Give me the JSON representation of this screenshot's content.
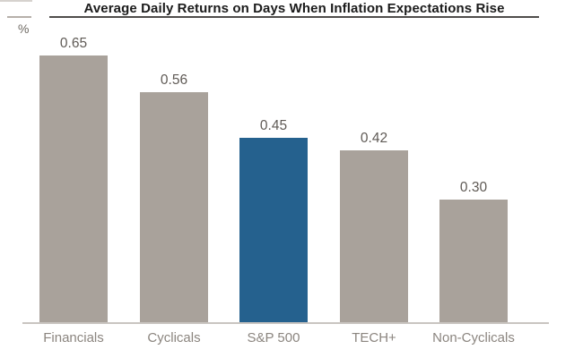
{
  "chart": {
    "title": "Average Daily Returns on Days When Inflation Expectations Rise",
    "unit_label": "%"
  },
  "chart_data": {
    "type": "bar",
    "title": "Average Daily Returns on Days When Inflation Expectations Rise",
    "xlabel": "",
    "ylabel": "%",
    "categories": [
      "Financials",
      "Cyclicals",
      "S&P 500",
      "TECH+",
      "Non-Cyclicals"
    ],
    "values": [
      0.65,
      0.56,
      0.45,
      0.42,
      0.3
    ],
    "value_labels": [
      "0.65",
      "0.56",
      "0.45",
      "0.42",
      "0.30"
    ],
    "highlight_index": 2,
    "ylim": [
      0,
      0.7
    ],
    "grid": false,
    "legend": false,
    "value_labels_position": "above-bars",
    "colors": {
      "bar_default": "#a9a29b",
      "bar_highlight": "#25618e",
      "title_text": "#1b1b1b",
      "title_rule": "#4f4d4b",
      "unit_tick": "#b6b0aa",
      "value_text": "#5f5a55",
      "category_text": "#8b857f",
      "axis_line": "#c9c5c1",
      "background": "#ffffff"
    }
  }
}
